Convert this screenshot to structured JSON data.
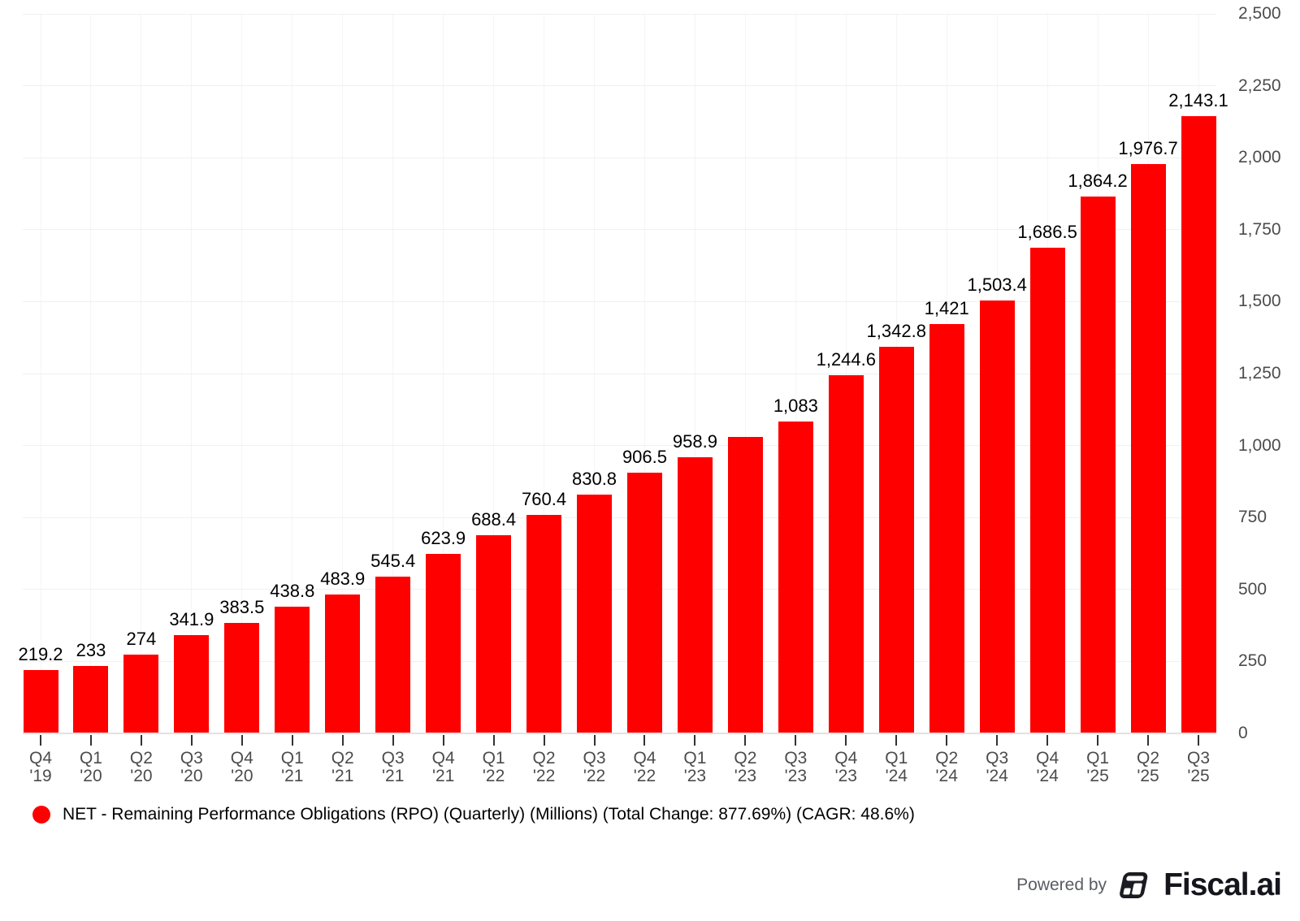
{
  "chart_data": {
    "type": "bar",
    "title": "",
    "categories": [
      "Q4 '19",
      "Q1 '20",
      "Q2 '20",
      "Q3 '20",
      "Q4 '20",
      "Q1 '21",
      "Q2 '21",
      "Q3 '21",
      "Q4 '21",
      "Q1 '22",
      "Q2 '22",
      "Q3 '22",
      "Q4 '22",
      "Q1 '23",
      "Q2 '23",
      "Q3 '23",
      "Q4 '23",
      "Q1 '24",
      "Q2 '24",
      "Q3 '24",
      "Q4 '24",
      "Q1 '25",
      "Q2 '25",
      "Q3 '25"
    ],
    "values": [
      219.2,
      233,
      274,
      341.9,
      383.5,
      438.8,
      483.9,
      545.4,
      623.9,
      688.4,
      760.4,
      830.8,
      906.5,
      958.9,
      1030,
      1083,
      1244.6,
      1342.8,
      1421,
      1503.4,
      1686.5,
      1864.2,
      1976.7,
      2143.1
    ],
    "value_labels": [
      "219.2",
      "233",
      "274",
      "341.9",
      "383.5",
      "438.8",
      "483.9",
      "545.4",
      "623.9",
      "688.4",
      "760.4",
      "830.8",
      "906.5",
      "958.9",
      "",
      "1,083",
      "1,244.6",
      "1,342.8",
      "1,421",
      "1,503.4",
      "1,686.5",
      "1,864.2",
      "1,976.7",
      "2,143.1"
    ],
    "xlabel": "",
    "ylabel": "",
    "ylim": [
      0,
      2500
    ],
    "y_ticks": [
      0,
      250,
      500,
      750,
      1000,
      1250,
      1500,
      1750,
      2000,
      2250,
      2500
    ],
    "y_tick_labels": [
      "0",
      "250",
      "500",
      "750",
      "1,000",
      "1,250",
      "1,500",
      "1,750",
      "2,000",
      "2,250",
      "2,500"
    ],
    "grid": "on",
    "legend_position": "bottom-left",
    "bar_color": "#ff0000"
  },
  "legend": {
    "marker_color": "#ff0000",
    "label": "NET - Remaining Performance Obligations (RPO) (Quarterly) (Millions) (Total Change: 877.69%) (CAGR: 48.6%)"
  },
  "footer": {
    "powered_by": "Powered by",
    "brand": "Fiscal.ai"
  },
  "colors": {
    "bar": "#ff0000",
    "value_label": "#000000",
    "axis_text": "#4c4c4c",
    "grid_line": "#f0f0f0",
    "axis_line": "#e2e2e2",
    "tick_mark": "#333333",
    "powered_by_text": "#5a5c63",
    "brand_text": "#15151c"
  }
}
